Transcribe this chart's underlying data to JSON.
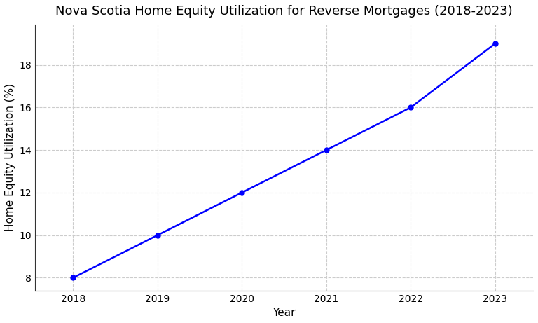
{
  "title": "Nova Scotia Home Equity Utilization for Reverse Mortgages (2018-2023)",
  "xlabel": "Year",
  "ylabel": "Home Equity Utilization (%)",
  "years": [
    2018,
    2019,
    2020,
    2021,
    2022,
    2023
  ],
  "values": [
    8,
    10,
    12,
    14,
    16,
    19
  ],
  "line_color": "#0000ff",
  "marker_color": "#0000ff",
  "marker_style": "o",
  "marker_size": 5,
  "line_width": 1.8,
  "xlim": [
    2017.55,
    2023.45
  ],
  "ylim": [
    7.4,
    19.9
  ],
  "yticks": [
    8,
    10,
    12,
    14,
    16,
    18
  ],
  "background_color": "#ffffff",
  "plot_bg_color": "#ffffff",
  "grid_color": "#cccccc",
  "grid_style": "--",
  "title_fontsize": 13,
  "axis_label_fontsize": 11,
  "tick_fontsize": 10
}
